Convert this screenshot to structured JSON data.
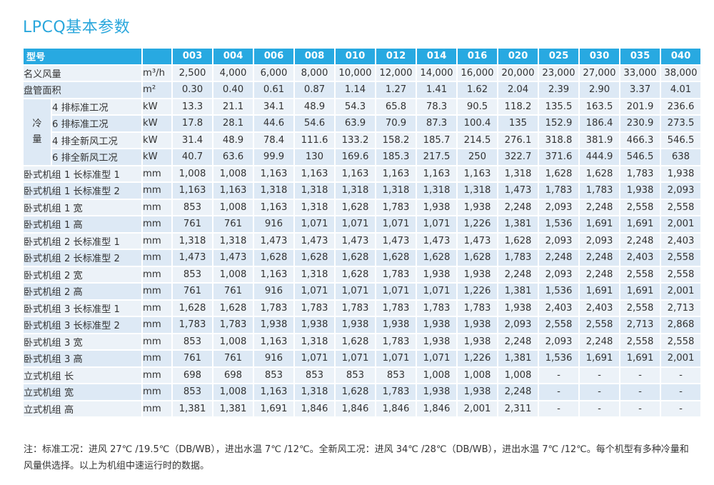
{
  "title": "LPCQ基本参数",
  "header": {
    "name": "型号",
    "unit": "",
    "models": [
      "003",
      "004",
      "006",
      "008",
      "010",
      "012",
      "014",
      "016",
      "020",
      "025",
      "030",
      "035",
      "040"
    ]
  },
  "rows_top": [
    {
      "label": "名义风量",
      "unit": "m³/h",
      "values": [
        "2,500",
        "4,000",
        "6,000",
        "8,000",
        "10,000",
        "12,000",
        "14,000",
        "16,000",
        "20,000",
        "23,000",
        "27,000",
        "33,000",
        "38,000"
      ]
    },
    {
      "label": "盘管面积",
      "unit": "m²",
      "values": [
        "0.30",
        "0.40",
        "0.61",
        "0.87",
        "1.14",
        "1.27",
        "1.41",
        "1.62",
        "2.04",
        "2.39",
        "2.90",
        "3.37",
        "4.01"
      ]
    }
  ],
  "cooling": {
    "group_label_1": "冷",
    "group_label_2": "量",
    "rows": [
      {
        "label": "4 排标准工况",
        "unit": "kW",
        "values": [
          "13.3",
          "21.1",
          "34.1",
          "48.9",
          "54.3",
          "65.8",
          "78.3",
          "90.5",
          "118.2",
          "135.5",
          "163.5",
          "201.9",
          "236.6"
        ]
      },
      {
        "label": "6 排标准工况",
        "unit": "kW",
        "values": [
          "17.8",
          "28.1",
          "44.6",
          "54.6",
          "63.9",
          "70.9",
          "87.3",
          "100.4",
          "135",
          "152.9",
          "186.4",
          "230.9",
          "273.5"
        ]
      },
      {
        "label": "4 排全新风工况",
        "unit": "kW",
        "values": [
          "31.4",
          "48.9",
          "78.4",
          "111.6",
          "133.2",
          "158.2",
          "185.7",
          "214.5",
          "276.1",
          "318.8",
          "381.9",
          "466.3",
          "546.5"
        ]
      },
      {
        "label": "6 排全新风工况",
        "unit": "kW",
        "values": [
          "40.7",
          "63.6",
          "99.9",
          "130",
          "169.6",
          "185.3",
          "217.5",
          "250",
          "322.7",
          "371.6",
          "444.9",
          "546.5",
          "638"
        ]
      }
    ]
  },
  "rows_bottom": [
    {
      "label": "卧式机组 1 长标准型 1",
      "unit": "mm",
      "values": [
        "1,008",
        "1,008",
        "1,163",
        "1,163",
        "1,163",
        "1,163",
        "1,163",
        "1,163",
        "1,318",
        "1,628",
        "1,628",
        "1,783",
        "1,938"
      ]
    },
    {
      "label": "卧式机组 1 长标准型 2",
      "unit": "mm",
      "values": [
        "1,163",
        "1,163",
        "1,318",
        "1,318",
        "1,318",
        "1,318",
        "1,318",
        "1,318",
        "1,473",
        "1,783",
        "1,783",
        "1,938",
        "2,093"
      ]
    },
    {
      "label": "卧式机组 1 宽",
      "unit": "mm",
      "values": [
        "853",
        "1,008",
        "1,163",
        "1,318",
        "1,628",
        "1,783",
        "1,938",
        "1,938",
        "2,248",
        "2,093",
        "2,248",
        "2,558",
        "2,558"
      ]
    },
    {
      "label": "卧式机组 1 高",
      "unit": "mm",
      "values": [
        "761",
        "761",
        "916",
        "1,071",
        "1,071",
        "1,071",
        "1,071",
        "1,226",
        "1,381",
        "1,536",
        "1,691",
        "1,691",
        "2,001"
      ]
    },
    {
      "label": "卧式机组 2 长标准型 1",
      "unit": "mm",
      "values": [
        "1,318",
        "1,318",
        "1,473",
        "1,473",
        "1,473",
        "1,473",
        "1,473",
        "1,473",
        "1,628",
        "2,093",
        "2,093",
        "2,248",
        "2,403"
      ]
    },
    {
      "label": "卧式机组 2 长标准型 2",
      "unit": "mm",
      "values": [
        "1,473",
        "1,473",
        "1,628",
        "1,628",
        "1,628",
        "1,628",
        "1,628",
        "1,628",
        "1,783",
        "2,248",
        "2,248",
        "2,403",
        "2,558"
      ]
    },
    {
      "label": "卧式机组 2 宽",
      "unit": "mm",
      "values": [
        "853",
        "1,008",
        "1,163",
        "1,318",
        "1,628",
        "1,783",
        "1,938",
        "1,938",
        "2,248",
        "2,093",
        "2,248",
        "2,558",
        "2,558"
      ]
    },
    {
      "label": "卧式机组 2 高",
      "unit": "mm",
      "values": [
        "761",
        "761",
        "916",
        "1,071",
        "1,071",
        "1,071",
        "1,071",
        "1,226",
        "1,381",
        "1,536",
        "1,691",
        "1,691",
        "2,001"
      ]
    },
    {
      "label": "卧式机组 3 长标准型 1",
      "unit": "mm",
      "values": [
        "1,628",
        "1,628",
        "1,783",
        "1,783",
        "1,783",
        "1,783",
        "1,783",
        "1,783",
        "1,938",
        "2,403",
        "2,403",
        "2,558",
        "2,713"
      ]
    },
    {
      "label": "卧式机组 3 长标准型 2",
      "unit": "mm",
      "values": [
        "1,783",
        "1,783",
        "1,938",
        "1,938",
        "1,938",
        "1,938",
        "1,938",
        "1,938",
        "2,093",
        "2,558",
        "2,558",
        "2,713",
        "2,868"
      ]
    },
    {
      "label": "卧式机组 3 宽",
      "unit": "mm",
      "values": [
        "853",
        "1,008",
        "1,163",
        "1,318",
        "1,628",
        "1,783",
        "1,938",
        "1,938",
        "2,248",
        "2,093",
        "2,248",
        "2,558",
        "2,558"
      ]
    },
    {
      "label": "卧式机组 3 高",
      "unit": "mm",
      "values": [
        "761",
        "761",
        "916",
        "1,071",
        "1,071",
        "1,071",
        "1,071",
        "1,226",
        "1,381",
        "1,536",
        "1,691",
        "1,691",
        "2,001"
      ]
    },
    {
      "label": "立式机组 长",
      "unit": "mm",
      "values": [
        "698",
        "698",
        "853",
        "853",
        "853",
        "853",
        "1,008",
        "1,008",
        "1,008",
        "-",
        "-",
        "-",
        "-"
      ]
    },
    {
      "label": "立式机组 宽",
      "unit": "mm",
      "values": [
        "853",
        "1,008",
        "1,163",
        "1,318",
        "1,628",
        "1,783",
        "1,938",
        "1,938",
        "2,248",
        "-",
        "-",
        "-",
        "-"
      ]
    },
    {
      "label": "立式机组 高",
      "unit": "mm",
      "values": [
        "1,381",
        "1,381",
        "1,691",
        "1,846",
        "1,846",
        "1,846",
        "1,846",
        "2,001",
        "2,311",
        "-",
        "-",
        "-",
        "-"
      ]
    }
  ],
  "note": "注：标准工况：进风 27℃ /19.5℃（DB/WB），进出水温 7℃ /12℃。全新风工况：进风 34℃ /28℃（DB/WB），进出水温 7℃ /12℃。每个机型有多种冷量和风量供选择。以上为机组中速运行时的数据。"
}
